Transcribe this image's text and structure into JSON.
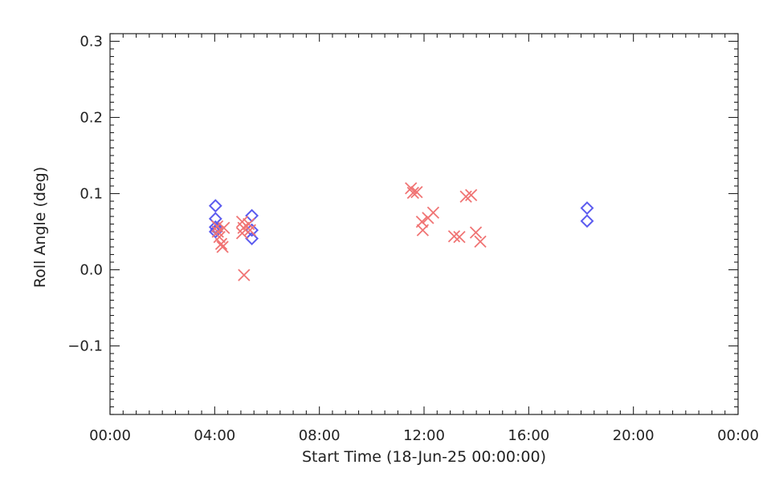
{
  "chart_data": {
    "type": "scatter",
    "title": "",
    "xlabel": "Start Time (18-Jun-25 00:00:00)",
    "ylabel": "Roll Angle (deg)",
    "x_unit": "hours",
    "xlim": [
      0,
      24
    ],
    "ylim": [
      -0.19,
      0.31
    ],
    "x_ticks": [
      {
        "value": 0,
        "label": "00:00"
      },
      {
        "value": 4,
        "label": "04:00"
      },
      {
        "value": 8,
        "label": "08:00"
      },
      {
        "value": 12,
        "label": "12:00"
      },
      {
        "value": 16,
        "label": "16:00"
      },
      {
        "value": 20,
        "label": "20:00"
      },
      {
        "value": 24,
        "label": "00:00"
      }
    ],
    "y_ticks": [
      {
        "value": -0.1,
        "label": "−0.1"
      },
      {
        "value": 0.0,
        "label": "0.0"
      },
      {
        "value": 0.1,
        "label": "0.1"
      },
      {
        "value": 0.2,
        "label": "0.2"
      },
      {
        "value": 0.3,
        "label": "0.3"
      }
    ],
    "grid": false,
    "series": [
      {
        "marker": "diamond",
        "color": "#5b5bef",
        "points": [
          {
            "x": 4.03,
            "y": 0.084
          },
          {
            "x": 4.03,
            "y": 0.067
          },
          {
            "x": 4.03,
            "y": 0.056
          },
          {
            "x": 4.03,
            "y": 0.05
          },
          {
            "x": 4.08,
            "y": 0.053
          },
          {
            "x": 5.42,
            "y": 0.071
          },
          {
            "x": 5.42,
            "y": 0.052
          },
          {
            "x": 5.42,
            "y": 0.041
          },
          {
            "x": 18.23,
            "y": 0.081
          },
          {
            "x": 18.23,
            "y": 0.064
          }
        ]
      },
      {
        "marker": "x",
        "color": "#f07474",
        "points": [
          {
            "x": 4.1,
            "y": 0.057
          },
          {
            "x": 4.12,
            "y": 0.05
          },
          {
            "x": 4.18,
            "y": 0.043
          },
          {
            "x": 4.25,
            "y": 0.034
          },
          {
            "x": 4.3,
            "y": 0.03
          },
          {
            "x": 4.35,
            "y": 0.055
          },
          {
            "x": 5.05,
            "y": 0.063
          },
          {
            "x": 5.1,
            "y": 0.055
          },
          {
            "x": 5.05,
            "y": 0.048
          },
          {
            "x": 5.12,
            "y": -0.007
          },
          {
            "x": 5.3,
            "y": 0.06
          },
          {
            "x": 5.35,
            "y": 0.052
          },
          {
            "x": 11.5,
            "y": 0.107
          },
          {
            "x": 11.58,
            "y": 0.101
          },
          {
            "x": 11.72,
            "y": 0.102
          },
          {
            "x": 11.92,
            "y": 0.063
          },
          {
            "x": 11.95,
            "y": 0.052
          },
          {
            "x": 12.15,
            "y": 0.068
          },
          {
            "x": 12.35,
            "y": 0.075
          },
          {
            "x": 13.15,
            "y": 0.044
          },
          {
            "x": 13.35,
            "y": 0.043
          },
          {
            "x": 13.6,
            "y": 0.096
          },
          {
            "x": 13.8,
            "y": 0.098
          },
          {
            "x": 13.98,
            "y": 0.049
          },
          {
            "x": 14.15,
            "y": 0.037
          }
        ]
      }
    ]
  }
}
